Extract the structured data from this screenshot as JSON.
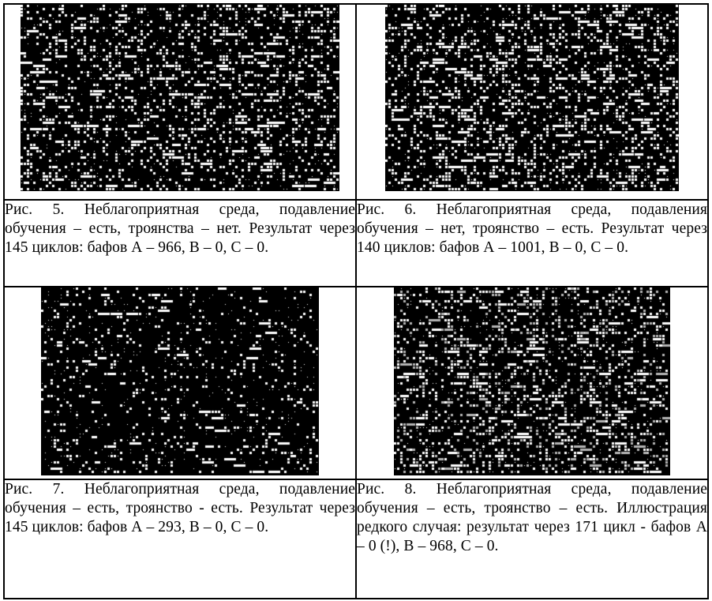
{
  "figures": [
    {
      "id": "fig5",
      "caption": "Рис. 5. Неблагоприятная среда, подавление обучения – есть, троянства – нет. Результат через 145 циклов: бафов А – 966, В – 0, С – 0.",
      "palette": [
        "#000000",
        "#ffffff"
      ],
      "density": 0.22,
      "seed": 5
    },
    {
      "id": "fig6",
      "caption": "Рис. 6. Неблагоприятная среда, подавления обучения – нет, троянство – есть. Результат через 140 циклов: бафов А – 1001, В – 0, С – 0.",
      "palette": [
        "#000000",
        "#ffffff"
      ],
      "density": 0.25,
      "seed": 6
    },
    {
      "id": "fig7",
      "caption": "Рис. 7. Неблагоприятная среда, подавление обучения – есть, троянство - есть. Результат через 145 циклов: бафов А – 293, В – 0, С – 0.",
      "palette": [
        "#000000",
        "#ffffff"
      ],
      "density": 0.1,
      "seed": 7
    },
    {
      "id": "fig8",
      "caption": "Рис. 8. Неблагоприятная среда, подавление обучения – есть, троянство – есть. Иллюстрация редкого случая: результат через 171 цикл - бафов А – 0 (!), В – 968, С – 0.",
      "palette": [
        "#000000",
        "#ffffff",
        "#b4b4b4"
      ],
      "density": 0.26,
      "seed": 8
    }
  ]
}
